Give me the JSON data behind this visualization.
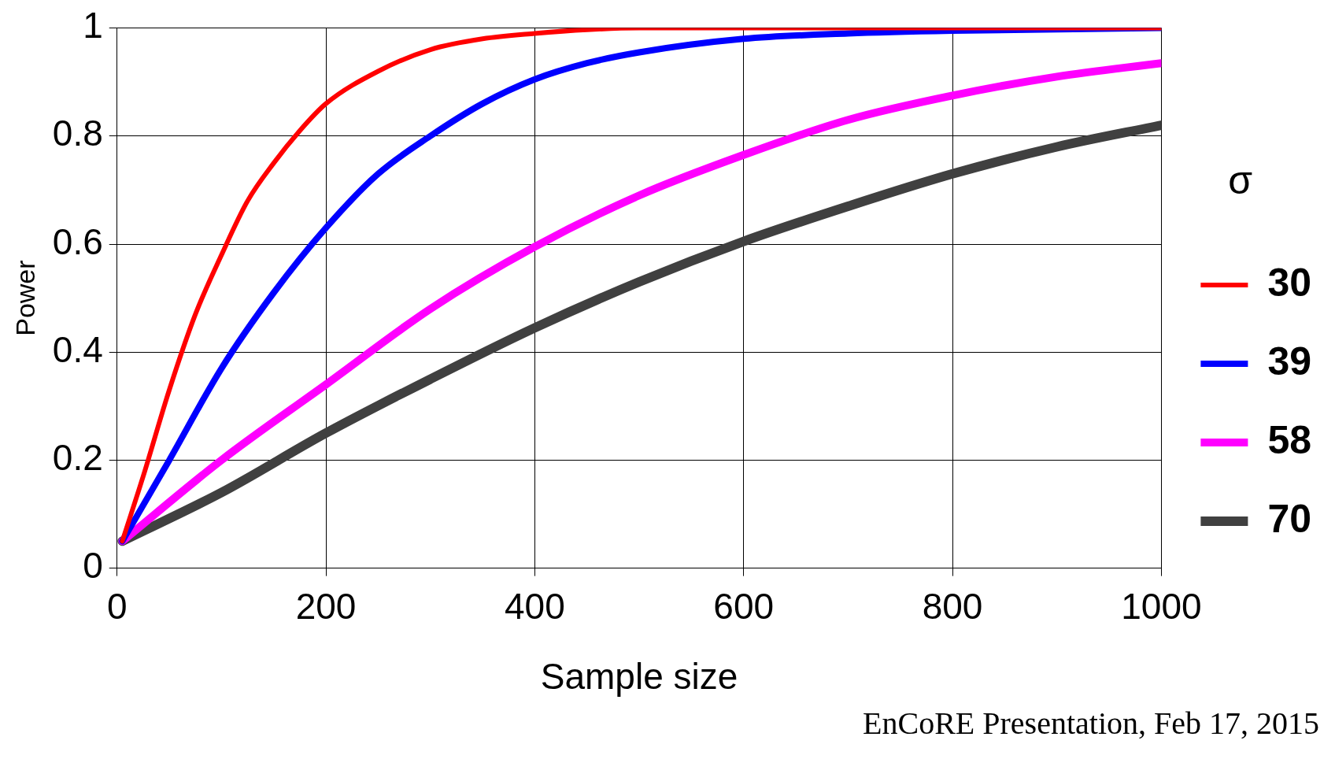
{
  "chart_data": {
    "type": "line",
    "xlabel": "Sample size",
    "ylabel": "Power",
    "legend_title": "σ",
    "legend": "right",
    "grid": true,
    "marker": "none",
    "line_style": "solid",
    "xlim": [
      0,
      1000
    ],
    "xticks": [
      0,
      200,
      400,
      600,
      800,
      1000
    ],
    "ylim": [
      0,
      1
    ],
    "yticks": [
      0,
      0.2,
      0.4,
      0.6,
      0.8,
      1
    ],
    "annotations": [
      "EnCoRE Presentation, Feb 17, 2015"
    ],
    "series": [
      {
        "name": "30",
        "color": "#ff0000",
        "x": [
          5,
          25,
          50,
          75,
          100,
          125,
          150,
          175,
          200,
          250,
          300,
          350,
          400,
          450,
          500,
          1000
        ],
        "values": [
          0.05,
          0.17,
          0.33,
          0.47,
          0.58,
          0.68,
          0.75,
          0.81,
          0.86,
          0.92,
          0.96,
          0.98,
          0.99,
          0.997,
          1,
          1
        ]
      },
      {
        "name": "39",
        "color": "#0000ff",
        "x": [
          5,
          50,
          100,
          150,
          200,
          250,
          300,
          350,
          400,
          450,
          500,
          600,
          700,
          800,
          1000
        ],
        "values": [
          0.05,
          0.2,
          0.37,
          0.51,
          0.63,
          0.73,
          0.8,
          0.86,
          0.905,
          0.935,
          0.955,
          0.98,
          0.99,
          0.995,
          1
        ]
      },
      {
        "name": "58",
        "color": "#ff00ff",
        "x": [
          5,
          100,
          200,
          300,
          400,
          500,
          600,
          700,
          800,
          900,
          1000
        ],
        "values": [
          0.05,
          0.2,
          0.34,
          0.48,
          0.595,
          0.69,
          0.765,
          0.83,
          0.875,
          0.91,
          0.935
        ]
      },
      {
        "name": "70",
        "color": "#404040",
        "x": [
          5,
          100,
          200,
          300,
          400,
          500,
          600,
          700,
          800,
          900,
          1000
        ],
        "values": [
          0.05,
          0.14,
          0.25,
          0.35,
          0.445,
          0.53,
          0.605,
          0.67,
          0.73,
          0.78,
          0.82
        ]
      }
    ]
  }
}
